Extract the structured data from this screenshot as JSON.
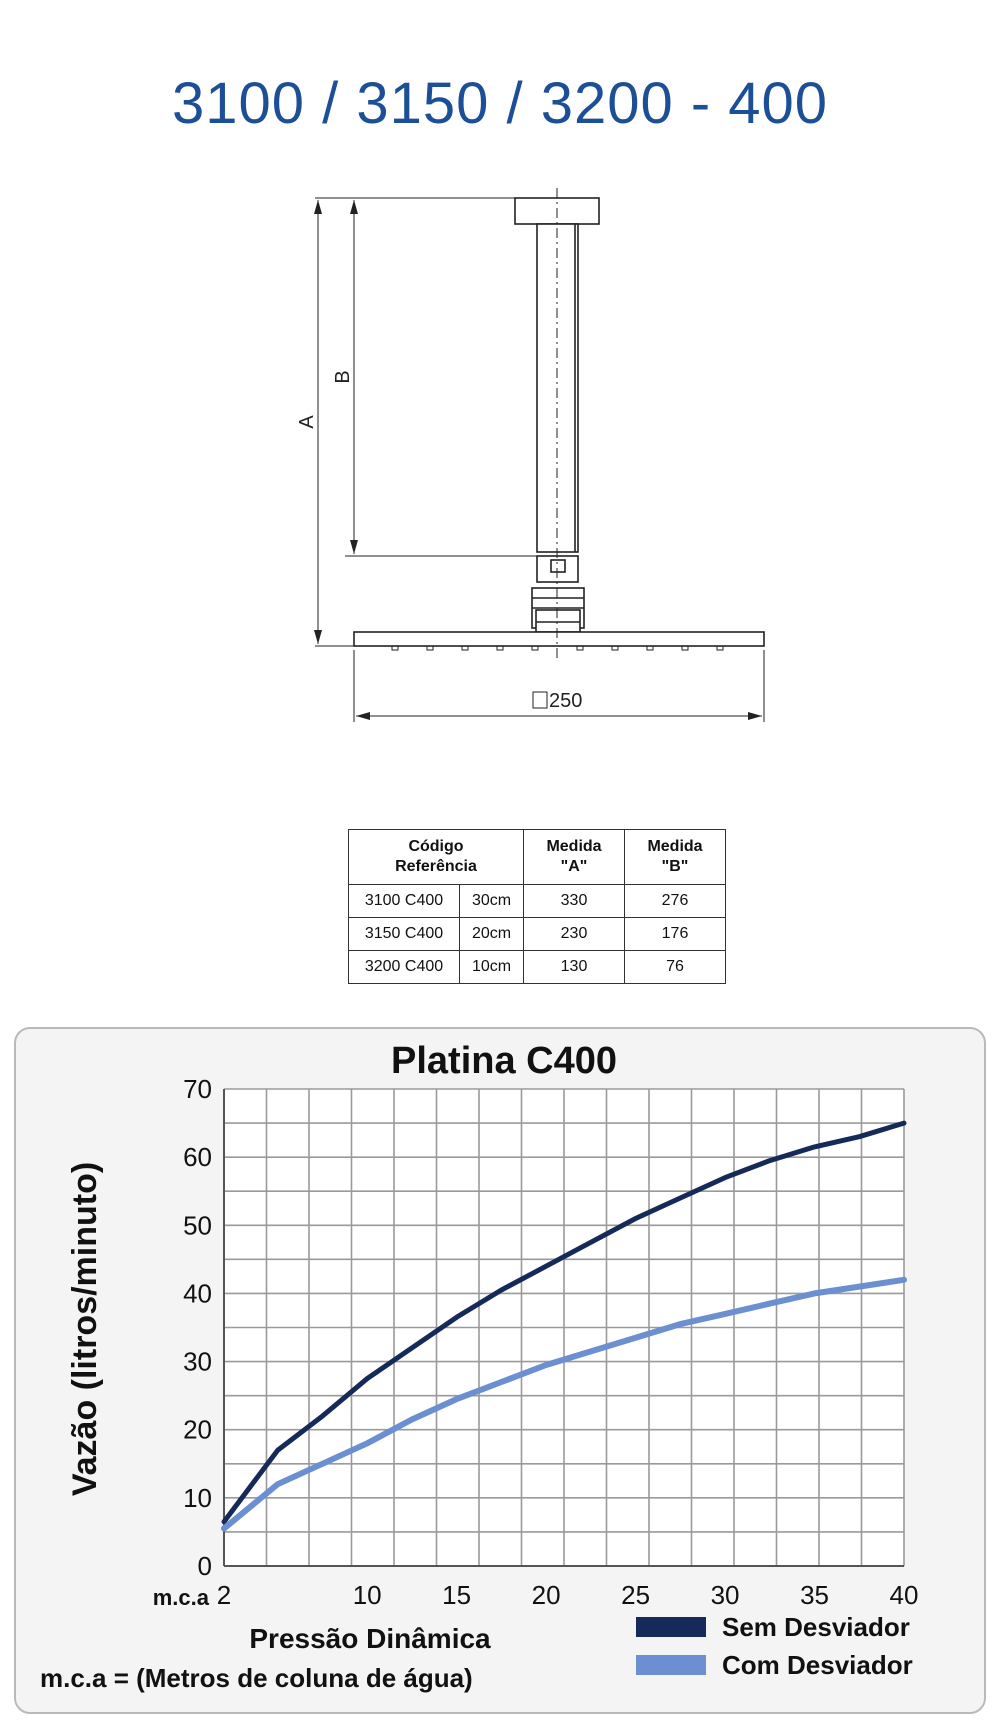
{
  "header": {
    "title": "3100 / 3150 / 3200 - 400"
  },
  "drawing": {
    "label_a": "A",
    "label_b": "B",
    "width_label": "250"
  },
  "table": {
    "headers": [
      "Código\nReferência",
      "Medida\n\"A\"",
      "Medida\n\"B\""
    ],
    "rows": [
      {
        "code": "3100 C400",
        "length": "30cm",
        "a": "330",
        "b": "276"
      },
      {
        "code": "3150 C400",
        "length": "20cm",
        "a": "230",
        "b": "176"
      },
      {
        "code": "3200 C400",
        "length": "10cm",
        "a": "130",
        "b": "76"
      }
    ]
  },
  "chart_data": {
    "type": "line",
    "title": "Platina C400",
    "xlabel": "Pressão Dinâmica",
    "ylabel": "Vazão (litros/minuto)",
    "x_unit": "m.c.a",
    "footnote": "m.c.a = (Metros de coluna de água)",
    "x_ticks": [
      2,
      10,
      15,
      20,
      25,
      30,
      35,
      40
    ],
    "y_ticks": [
      0,
      10,
      20,
      30,
      40,
      50,
      60,
      70
    ],
    "xlim": [
      2,
      40
    ],
    "ylim": [
      0,
      70
    ],
    "grid": true,
    "legend_position": "bottom-right",
    "series": [
      {
        "name": "Sem Desviador",
        "color": "#162a5a",
        "x": [
          2,
          5,
          7.5,
          10,
          12.5,
          15,
          17.5,
          20,
          22.5,
          25,
          27.5,
          30,
          32.5,
          35,
          37.5,
          40
        ],
        "values": [
          6.5,
          17,
          22,
          27.5,
          32,
          36.5,
          40.5,
          44,
          47.5,
          51,
          54,
          57,
          59.5,
          61.5,
          63,
          65
        ]
      },
      {
        "name": "Com Desviador",
        "color": "#6b8fd1",
        "x": [
          2,
          5,
          7.5,
          10,
          12.5,
          15,
          17.5,
          20,
          22.5,
          25,
          27.5,
          30,
          32.5,
          35,
          37.5,
          40
        ],
        "values": [
          5.5,
          12,
          15,
          18,
          21.5,
          24.5,
          27,
          29.5,
          31.5,
          33.5,
          35.5,
          37,
          38.5,
          40,
          41,
          42
        ]
      }
    ]
  }
}
